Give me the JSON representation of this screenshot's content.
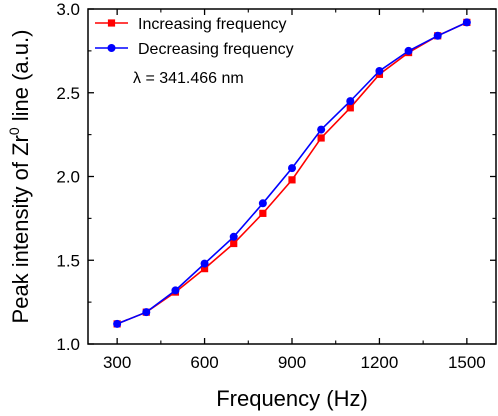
{
  "chart_data": {
    "type": "line",
    "xlabel": "Frequency (Hz)",
    "ylabel": {
      "prefix": "Peak intensity of Zr",
      "superscript": "0",
      "suffix": " line (a.u.)"
    },
    "xlim": [
      200,
      1600
    ],
    "ylim": [
      1.0,
      3.0
    ],
    "xticks": [
      300,
      600,
      900,
      1200,
      1500
    ],
    "xticks_minor": [
      450,
      750,
      1050,
      1350
    ],
    "yticks": [
      1.0,
      1.5,
      2.0,
      2.5,
      3.0
    ],
    "yticks_minor": [
      1.25,
      1.75,
      2.25,
      2.75
    ],
    "x": [
      300,
      400,
      500,
      600,
      700,
      800,
      900,
      1000,
      1100,
      1200,
      1300,
      1400,
      1500
    ],
    "series": [
      {
        "name": "Increasing frequency",
        "color": "#ff0000",
        "marker": "square",
        "values": [
          1.12,
          1.19,
          1.31,
          1.45,
          1.6,
          1.78,
          1.98,
          2.23,
          2.41,
          2.61,
          2.74,
          2.84,
          2.92
        ]
      },
      {
        "name": "Decreasing frequency",
        "color": "#0000ff",
        "marker": "circle",
        "values": [
          1.12,
          1.19,
          1.32,
          1.48,
          1.64,
          1.84,
          2.05,
          2.28,
          2.45,
          2.63,
          2.75,
          2.84,
          2.92
        ]
      }
    ],
    "annotation": "λ = 341.466 nm",
    "legend": "top-left",
    "grid": false
  }
}
